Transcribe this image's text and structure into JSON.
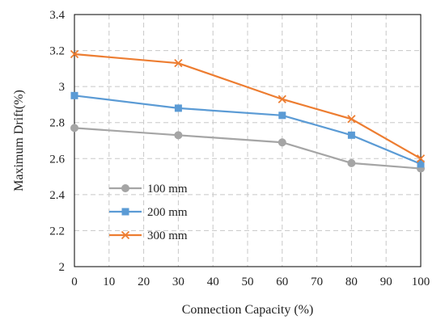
{
  "chart_data": {
    "type": "line",
    "title": "",
    "xlabel": "Connection Capacity (%)",
    "ylabel": "Maximum Drift(%)",
    "xlim": [
      0,
      100
    ],
    "ylim": [
      2,
      3.4
    ],
    "x_ticks": [
      "0",
      "10",
      "20",
      "30",
      "40",
      "50",
      "60",
      "70",
      "80",
      "90",
      "100"
    ],
    "y_ticks": [
      "2",
      "2.2",
      "2.4",
      "2.6",
      "2.8",
      "3",
      "3.2",
      "3.4"
    ],
    "grid": true,
    "legend_position": "lower-left",
    "series": [
      {
        "name": "100 mm",
        "color": "#a5a5a5",
        "marker": "circle",
        "x": [
          0,
          30,
          60,
          80,
          100
        ],
        "y": [
          2.77,
          2.73,
          2.69,
          2.575,
          2.545
        ]
      },
      {
        "name": "200 mm",
        "color": "#5b9bd5",
        "marker": "square",
        "x": [
          0,
          30,
          60,
          80,
          100
        ],
        "y": [
          2.95,
          2.88,
          2.84,
          2.73,
          2.57
        ]
      },
      {
        "name": "300 mm",
        "color": "#ed7d31",
        "marker": "x",
        "x": [
          0,
          30,
          60,
          80,
          100
        ],
        "y": [
          3.18,
          3.13,
          2.93,
          2.82,
          2.6
        ]
      }
    ]
  }
}
